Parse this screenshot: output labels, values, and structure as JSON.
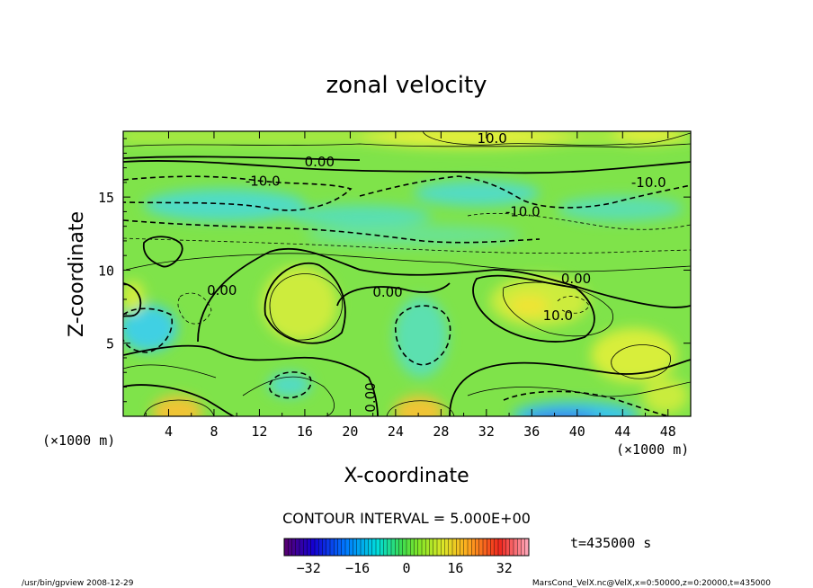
{
  "chart_data": {
    "type": "heatmap",
    "title": "zonal velocity",
    "xlabel": "X-coordinate",
    "ylabel": "Z-coordinate",
    "x_unit": "(×1000 m)",
    "z_unit": "(×1000 m)",
    "xlim": [
      0,
      50
    ],
    "ylim": [
      0,
      19.5
    ],
    "x_ticks": [
      4,
      8,
      12,
      16,
      20,
      24,
      28,
      32,
      36,
      40,
      44,
      48
    ],
    "y_ticks": [
      5,
      10,
      15
    ],
    "contour_interval_label": "CONTOUR INTERVAL = 5.000E+00",
    "time_label": "t=435000 s",
    "colorbar": {
      "range": [
        -40,
        40
      ],
      "ticks": [
        -32,
        -16,
        0,
        16,
        32
      ]
    },
    "contour_labels": [
      {
        "text": "10.0",
        "x": 32.5,
        "z": 19.0
      },
      {
        "text": "0.00",
        "x": 17.3,
        "z": 17.4
      },
      {
        "text": "-10.0",
        "x": 12.3,
        "z": 16.1
      },
      {
        "text": "-10.0",
        "x": 46.3,
        "z": 16.0
      },
      {
        "text": "-10.0",
        "x": 35.2,
        "z": 14.0
      },
      {
        "text": "0.00",
        "x": 8.7,
        "z": 8.6
      },
      {
        "text": "0.00",
        "x": 23.3,
        "z": 8.5
      },
      {
        "text": "0.00",
        "x": 39.9,
        "z": 9.4
      },
      {
        "text": "10.0",
        "x": 38.3,
        "z": 6.9
      },
      {
        "text": "0.00",
        "x": 22.2,
        "z": 1.6
      }
    ]
  },
  "footer": {
    "left": "/usr/bin/gpview  2008-12-29",
    "right": "MarsCond_VelX.nc@VelX,x=0:50000,z=0:20000,t=435000"
  }
}
